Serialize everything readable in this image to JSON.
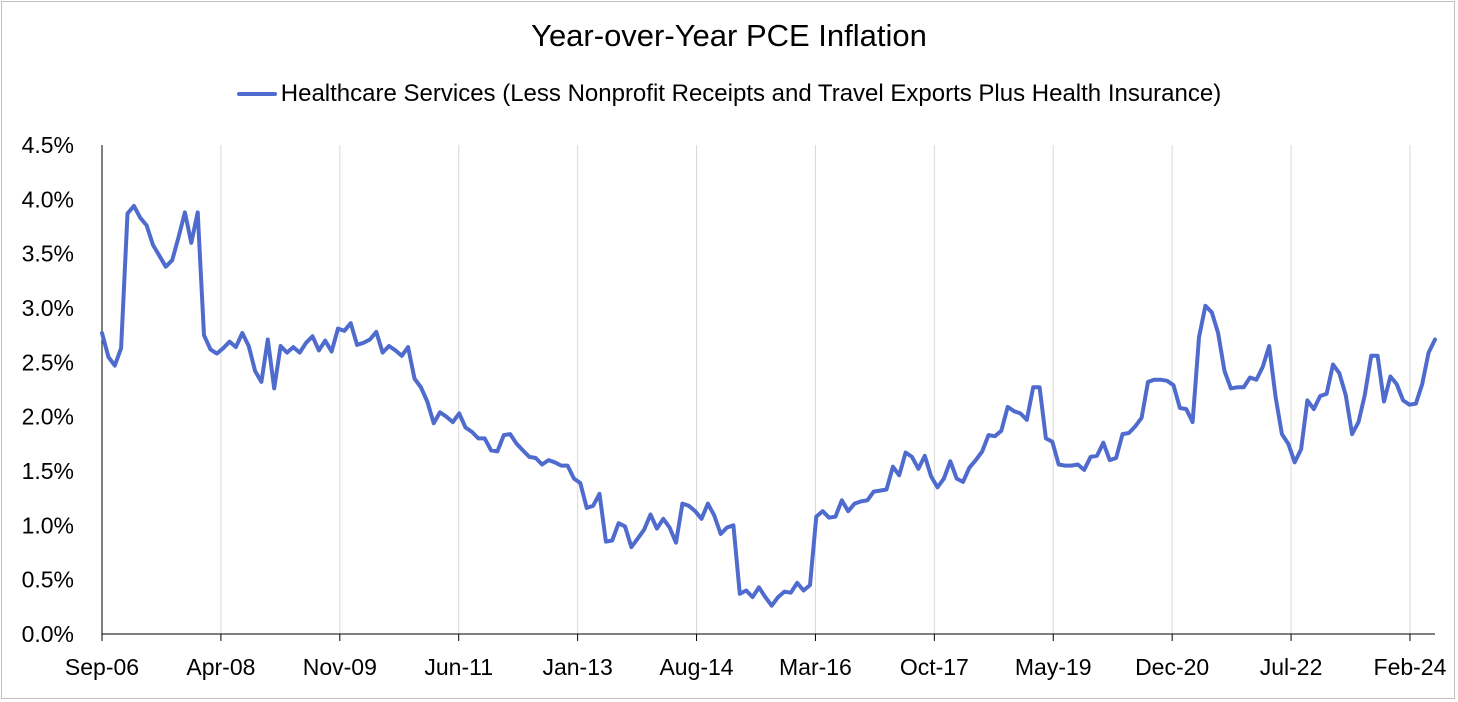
{
  "chart_data": {
    "type": "line",
    "title": "Year-over-Year PCE Inflation",
    "xlabel": "",
    "ylabel": "",
    "ylim": [
      0,
      4.5
    ],
    "y_ticks": [
      "0.0%",
      "0.5%",
      "1.0%",
      "1.5%",
      "2.0%",
      "2.5%",
      "3.0%",
      "3.5%",
      "4.0%",
      "4.5%"
    ],
    "x_ticks": [
      "Sep-06",
      "Apr-08",
      "Nov-09",
      "Jun-11",
      "Jan-13",
      "Aug-14",
      "Mar-16",
      "Oct-17",
      "May-19",
      "Dec-20",
      "Jul-22",
      "Feb-24"
    ],
    "x_start": "Sep-06",
    "grid": "vertical",
    "legend_position": "top",
    "series": [
      {
        "name": "Healthcare Services (Less Nonprofit Receipts and Travel Exports Plus Health Insurance)",
        "color": "#4f6bcd",
        "values": [
          2.77,
          2.55,
          2.47,
          2.63,
          3.87,
          3.94,
          3.83,
          3.76,
          3.58,
          3.48,
          3.38,
          3.44,
          3.65,
          3.88,
          3.6,
          3.88,
          2.75,
          2.62,
          2.58,
          2.63,
          2.69,
          2.64,
          2.77,
          2.65,
          2.42,
          2.32,
          2.71,
          2.26,
          2.65,
          2.59,
          2.64,
          2.59,
          2.68,
          2.74,
          2.61,
          2.7,
          2.6,
          2.81,
          2.79,
          2.86,
          2.66,
          2.68,
          2.71,
          2.78,
          2.59,
          2.65,
          2.61,
          2.56,
          2.64,
          2.35,
          2.27,
          2.14,
          1.94,
          2.04,
          2.0,
          1.95,
          2.03,
          1.9,
          1.86,
          1.8,
          1.8,
          1.69,
          1.68,
          1.83,
          1.84,
          1.75,
          1.69,
          1.63,
          1.62,
          1.56,
          1.6,
          1.58,
          1.55,
          1.55,
          1.43,
          1.39,
          1.16,
          1.18,
          1.29,
          0.85,
          0.86,
          1.02,
          0.99,
          0.8,
          0.88,
          0.96,
          1.1,
          0.97,
          1.06,
          0.98,
          0.84,
          1.2,
          1.18,
          1.13,
          1.06,
          1.2,
          1.09,
          0.92,
          0.98,
          1.0,
          0.37,
          0.4,
          0.34,
          0.43,
          0.34,
          0.26,
          0.34,
          0.39,
          0.38,
          0.47,
          0.4,
          0.45,
          1.08,
          1.13,
          1.07,
          1.08,
          1.23,
          1.13,
          1.2,
          1.22,
          1.23,
          1.31,
          1.32,
          1.33,
          1.54,
          1.46,
          1.67,
          1.63,
          1.52,
          1.64,
          1.45,
          1.35,
          1.43,
          1.59,
          1.43,
          1.4,
          1.53,
          1.6,
          1.68,
          1.83,
          1.82,
          1.87,
          2.09,
          2.05,
          2.03,
          1.97,
          2.27,
          2.27,
          1.8,
          1.77,
          1.56,
          1.55,
          1.55,
          1.56,
          1.51,
          1.63,
          1.64,
          1.76,
          1.6,
          1.62,
          1.84,
          1.85,
          1.91,
          1.99,
          2.32,
          2.34,
          2.34,
          2.33,
          2.29,
          2.08,
          2.07,
          1.95,
          2.73,
          3.02,
          2.96,
          2.77,
          2.42,
          2.26,
          2.27,
          2.27,
          2.36,
          2.34,
          2.46,
          2.65,
          2.18,
          1.84,
          1.75,
          1.58,
          1.7,
          2.15,
          2.07,
          2.19,
          2.21,
          2.48,
          2.4,
          2.2,
          1.84,
          1.95,
          2.2,
          2.56,
          2.56,
          2.14,
          2.37,
          2.3,
          2.15,
          2.11,
          2.12,
          2.3,
          2.59,
          2.71
        ]
      }
    ]
  }
}
